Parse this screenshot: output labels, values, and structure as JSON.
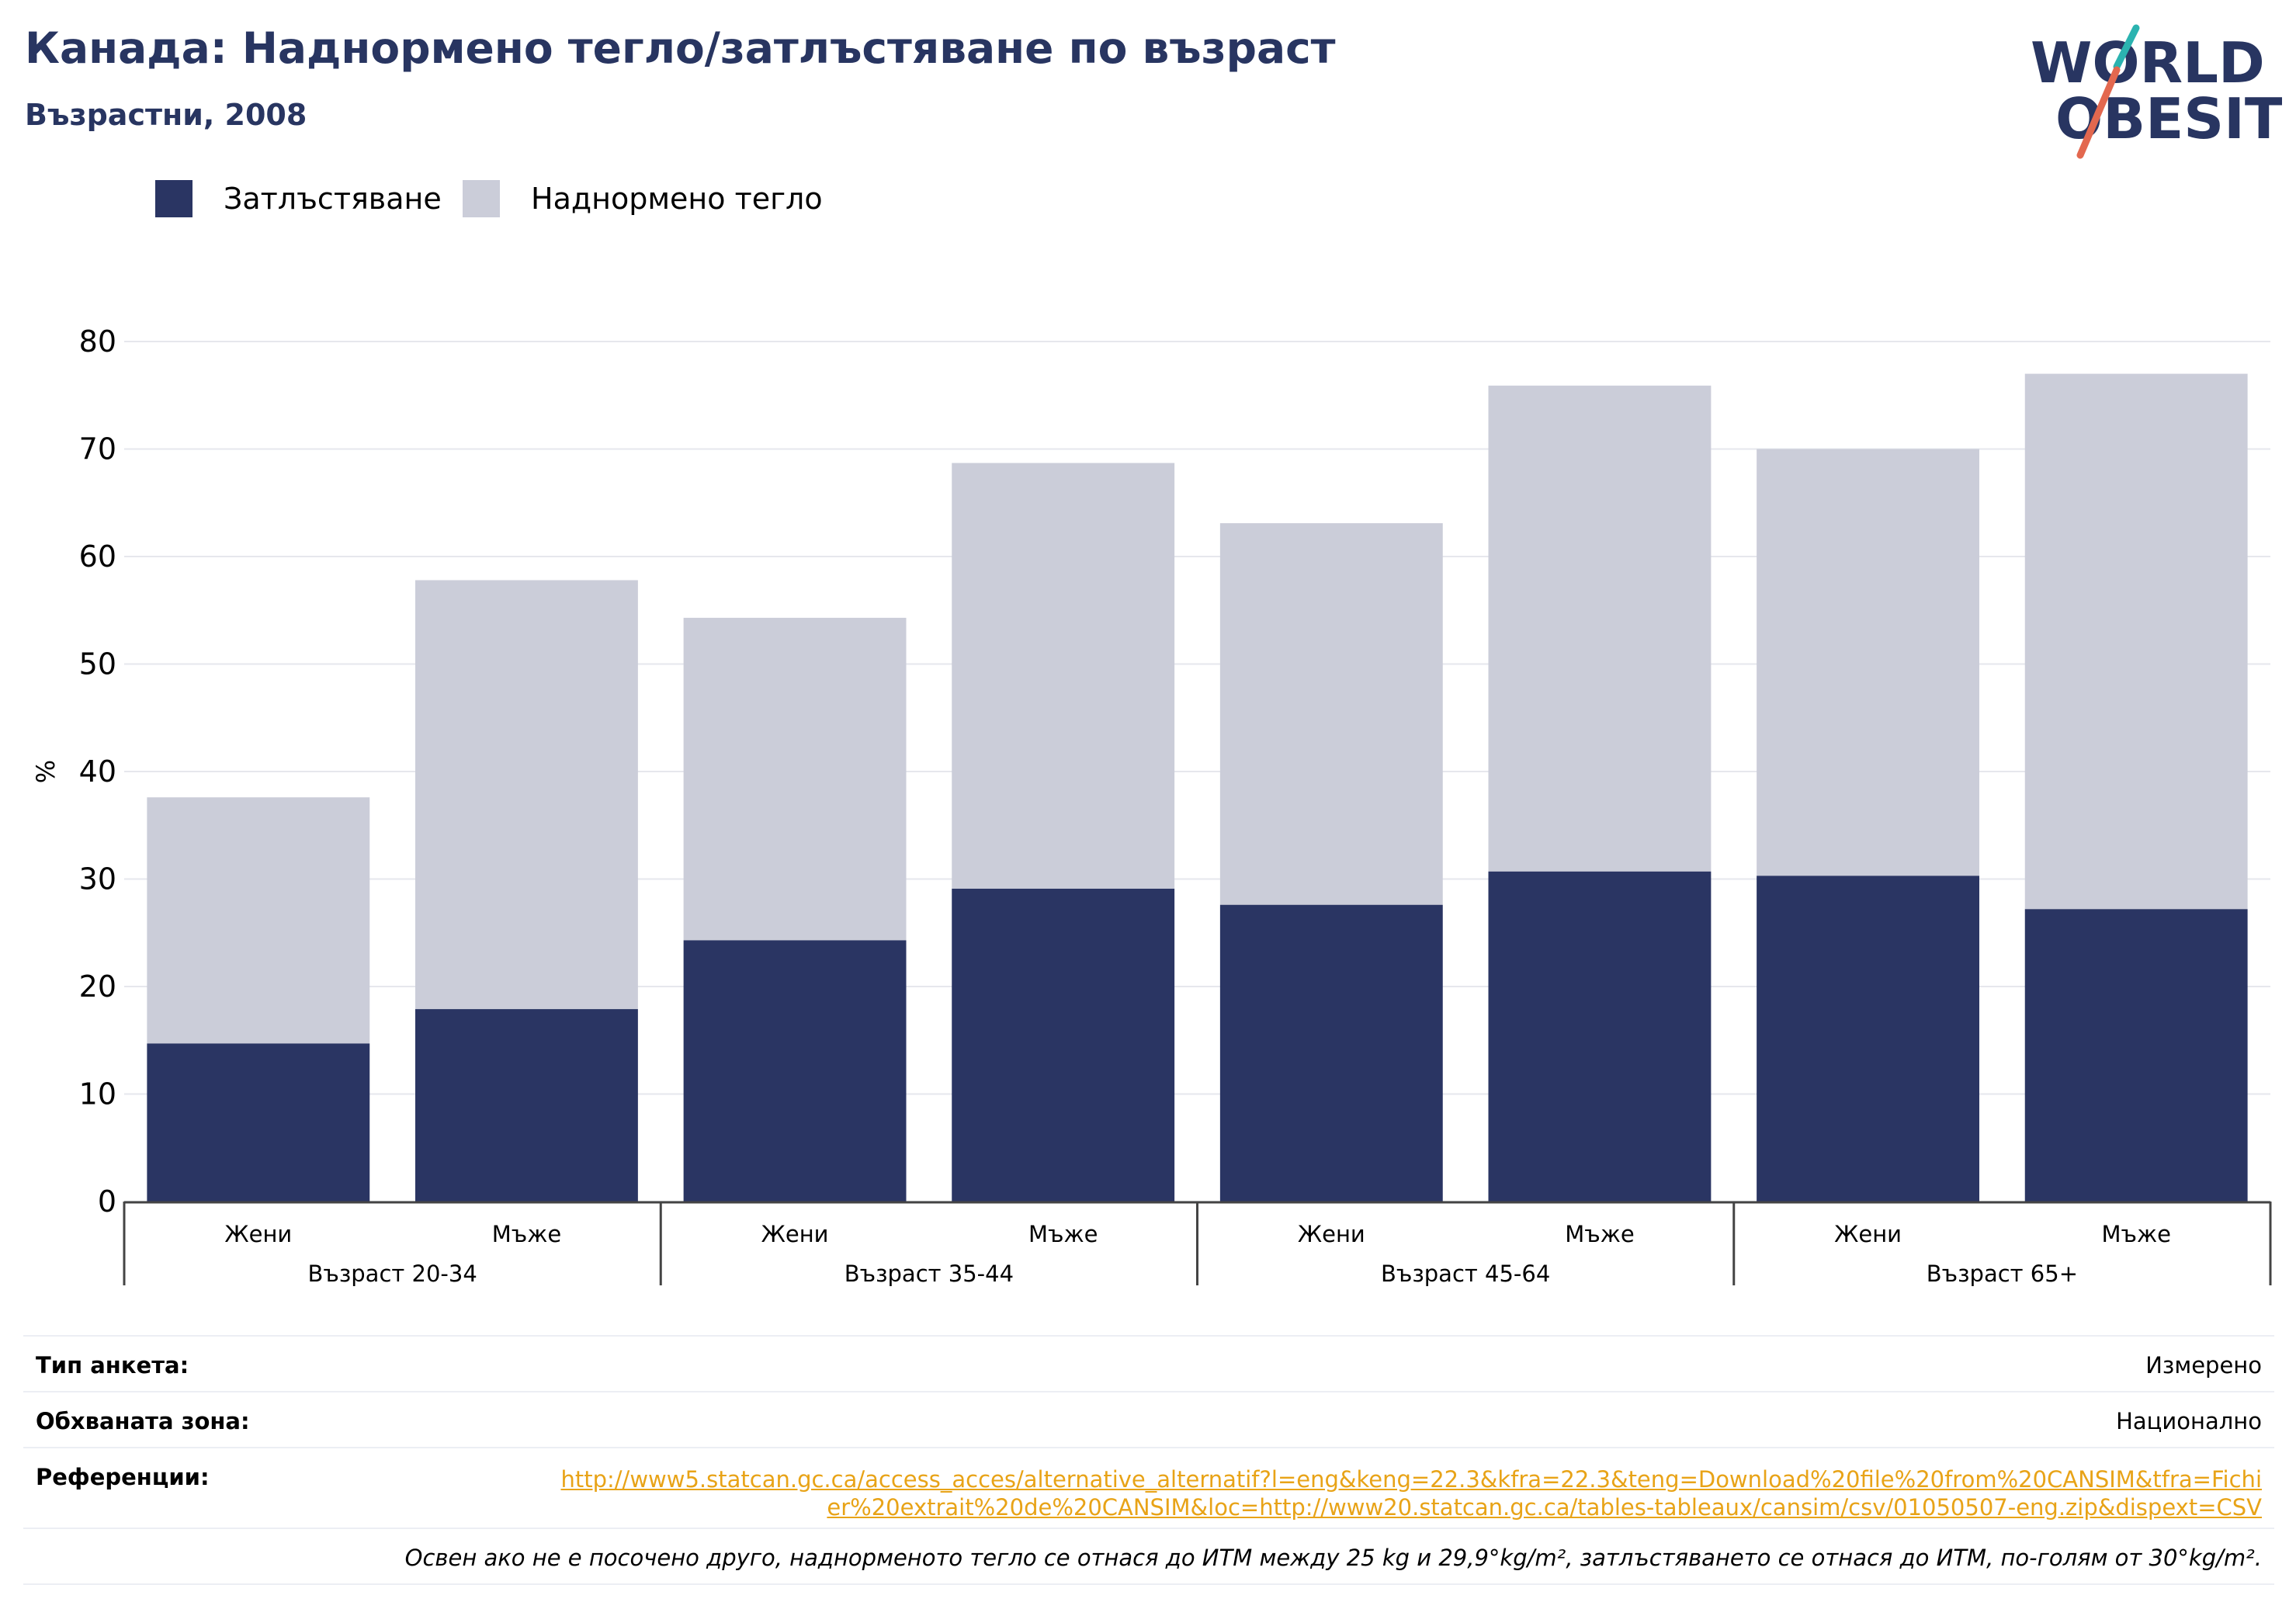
{
  "header": {
    "title": "Канада: Наднормено тегло/затлъстяване по възраст",
    "subtitle": "Възрастни, 2008",
    "logo_line1": "WORLD",
    "logo_line2": "OBESITY"
  },
  "legend": [
    {
      "label": "Затлъстяване",
      "color": "#2a3563"
    },
    {
      "label": "Наднормено тегло",
      "color": "#cbcdd9"
    }
  ],
  "chart_data": {
    "type": "bar",
    "stacked": true,
    "title": "Канада: Наднормено тегло/затлъстяване по възраст",
    "subtitle": "Възрастни, 2008",
    "ylabel": "%",
    "ylim": [
      0,
      80
    ],
    "yticks": [
      0,
      10,
      20,
      30,
      40,
      50,
      60,
      70,
      80
    ],
    "grid": true,
    "legend_position": "top-left",
    "groups": [
      "Възраст 20-34",
      "Възраст 35-44",
      "Възраст 45-64",
      "Възраст 65+"
    ],
    "categories": [
      "Жени",
      "Мъже",
      "Жени",
      "Мъже",
      "Жени",
      "Мъже",
      "Жени",
      "Мъже"
    ],
    "series": [
      {
        "name": "Затлъстяване",
        "color": "#2a3563",
        "values": [
          14.7,
          17.9,
          24.3,
          29.1,
          27.6,
          30.7,
          30.3,
          27.2
        ]
      },
      {
        "name": "Наднормено тегло",
        "color": "#cbcdd9",
        "values": [
          22.9,
          39.9,
          30.0,
          39.6,
          35.5,
          45.2,
          39.7,
          49.8
        ]
      }
    ]
  },
  "info": {
    "survey_type_label": "Тип анкета:",
    "survey_type_value": "Измерено",
    "coverage_label": "Обхваната зона:",
    "coverage_value": "Национално",
    "references_label": "Референции:",
    "references_url": "http://www5.statcan.gc.ca/access_acces/alternative_alternatif?l=eng&keng=22.3&kfra=22.3&teng=Download%20file%20from%20CANSIM&tfra=Fichier%20extrait%20de%20CANSIM&loc=http://www20.statcan.gc.ca/tables-tableaux/cansim/csv/01050507-eng.zip&dispext=CSV",
    "note": "Освен ако не е посочено друго, наднорменото тегло се отнася до ИТМ между 25 kg и 29,9°kg/m², затлъстяването се отнася до ИТМ, по-голям от 30°kg/m²."
  }
}
